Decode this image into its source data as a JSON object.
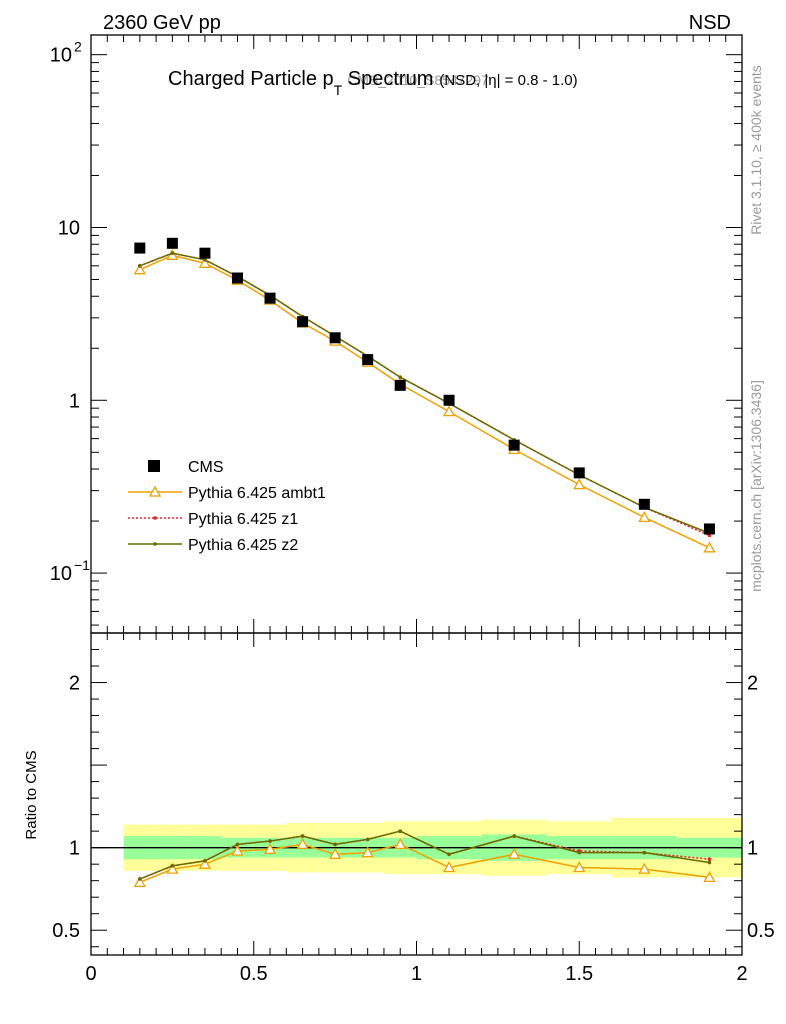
{
  "header": {
    "left": "2360 GeV pp",
    "right": "NSD"
  },
  "side_labels": {
    "rivet": "Rivet 3.1.10, ≥ 400k events",
    "mcplots": "mcplots.cern.ch [arXiv:1306.3436]"
  },
  "colors": {
    "cms": "#000000",
    "ambt1": "#f0a000",
    "z1": "#e8202a",
    "z2": "#6b6b00",
    "band_inner": "#99ff99",
    "band_outer": "#ffff99",
    "watermark": "#999999"
  },
  "chart_data": [
    {
      "type": "scatter",
      "title_main": "Charged Particle p",
      "title_sub": "T",
      "title_rest": " Spectrum",
      "title_small": "(NSD, |η| = 0.8 - 1.0)",
      "watermark": "CMS_2010_S8547297",
      "yscale": "log",
      "xlim": [
        0,
        2
      ],
      "ylim": [
        0.045,
        130
      ],
      "ytick_labels": {
        "major_100": "10",
        "major_100_exp": "2",
        "major_10": "10",
        "major_1": "1",
        "major_01": "10",
        "major_01_exp": "−1"
      },
      "legend_position": "bottom-left",
      "series": [
        {
          "name": "CMS",
          "marker": "square",
          "x": [
            0.15,
            0.25,
            0.35,
            0.45,
            0.55,
            0.65,
            0.75,
            0.85,
            0.95,
            1.1,
            1.3,
            1.5,
            1.7,
            1.9
          ],
          "y": [
            7.6,
            8.1,
            7.1,
            5.1,
            3.9,
            2.85,
            2.3,
            1.72,
            1.22,
            1.0,
            0.55,
            0.38,
            0.25,
            0.18
          ]
        },
        {
          "name": "Pythia 6.425 ambt1",
          "marker": "triangle",
          "x": [
            0.15,
            0.25,
            0.35,
            0.45,
            0.55,
            0.65,
            0.75,
            0.85,
            0.95,
            1.1,
            1.3,
            1.5,
            1.7,
            1.9
          ],
          "y": [
            5.7,
            6.9,
            6.2,
            4.95,
            3.8,
            2.8,
            2.2,
            1.66,
            1.24,
            0.86,
            0.52,
            0.325,
            0.21,
            0.14
          ]
        },
        {
          "name": "Pythia 6.425 z1",
          "marker": "dot",
          "dashed": true,
          "x": [
            0.15,
            0.25,
            0.35,
            0.45,
            0.55,
            0.65,
            0.75,
            0.85,
            0.95,
            1.1,
            1.3,
            1.5,
            1.7,
            1.9
          ],
          "y": [
            6.0,
            7.1,
            6.5,
            5.2,
            4.05,
            3.05,
            2.35,
            1.8,
            1.36,
            0.96,
            0.59,
            0.37,
            0.24,
            0.165
          ]
        },
        {
          "name": "Pythia 6.425 z2",
          "marker": "dot",
          "x": [
            0.15,
            0.25,
            0.35,
            0.45,
            0.55,
            0.65,
            0.75,
            0.85,
            0.95,
            1.1,
            1.3,
            1.5,
            1.7,
            1.9
          ],
          "y": [
            6.0,
            7.1,
            6.5,
            5.2,
            4.05,
            3.05,
            2.35,
            1.8,
            1.36,
            0.96,
            0.59,
            0.37,
            0.24,
            0.17
          ]
        }
      ]
    },
    {
      "type": "line",
      "ylabel": "Ratio to CMS",
      "xlim": [
        0,
        2
      ],
      "ylim": [
        0.35,
        2.3
      ],
      "xtick_labels": [
        "0",
        "0.5",
        "1",
        "1.5",
        "2"
      ],
      "ytick_labels": [
        "0.5",
        "1",
        "2"
      ],
      "bands": {
        "x_edges": [
          0.1,
          0.2,
          0.3,
          0.4,
          0.5,
          0.6,
          0.7,
          0.8,
          0.9,
          1.0,
          1.2,
          1.4,
          1.6,
          1.8,
          2.0
        ],
        "inner_low": [
          0.93,
          0.93,
          0.93,
          0.94,
          0.94,
          0.94,
          0.94,
          0.94,
          0.94,
          0.93,
          0.92,
          0.93,
          0.93,
          0.94
        ],
        "inner_high": [
          1.07,
          1.07,
          1.07,
          1.06,
          1.06,
          1.06,
          1.06,
          1.06,
          1.06,
          1.07,
          1.08,
          1.07,
          1.07,
          1.06
        ],
        "outer_low": [
          0.86,
          0.86,
          0.86,
          0.86,
          0.86,
          0.85,
          0.85,
          0.85,
          0.84,
          0.84,
          0.83,
          0.84,
          0.82,
          0.82
        ],
        "outer_high": [
          1.14,
          1.14,
          1.14,
          1.14,
          1.14,
          1.15,
          1.15,
          1.15,
          1.16,
          1.16,
          1.17,
          1.16,
          1.18,
          1.18
        ]
      },
      "series": [
        {
          "name": "Pythia 6.425 ambt1",
          "marker": "triangle",
          "x": [
            0.15,
            0.25,
            0.35,
            0.45,
            0.55,
            0.65,
            0.75,
            0.85,
            0.95,
            1.1,
            1.3,
            1.5,
            1.7,
            1.9
          ],
          "y": [
            0.79,
            0.87,
            0.9,
            0.98,
            0.99,
            1.02,
            0.96,
            0.97,
            1.02,
            0.88,
            0.96,
            0.88,
            0.87,
            0.82
          ]
        },
        {
          "name": "Pythia 6.425 z1",
          "marker": "dot",
          "dashed": true,
          "x": [
            0.15,
            0.25,
            0.35,
            0.45,
            0.55,
            0.65,
            0.75,
            0.85,
            0.95,
            1.1,
            1.3,
            1.5,
            1.7,
            1.9
          ],
          "y": [
            0.81,
            0.89,
            0.92,
            1.02,
            1.04,
            1.07,
            1.02,
            1.05,
            1.1,
            0.96,
            1.07,
            0.98,
            0.97,
            0.93
          ]
        },
        {
          "name": "Pythia 6.425 z2",
          "marker": "dot",
          "x": [
            0.15,
            0.25,
            0.35,
            0.45,
            0.55,
            0.65,
            0.75,
            0.85,
            0.95,
            1.1,
            1.3,
            1.5,
            1.7,
            1.9
          ],
          "y": [
            0.81,
            0.89,
            0.92,
            1.02,
            1.04,
            1.07,
            1.02,
            1.05,
            1.1,
            0.96,
            1.07,
            0.97,
            0.97,
            0.91
          ]
        }
      ]
    }
  ]
}
